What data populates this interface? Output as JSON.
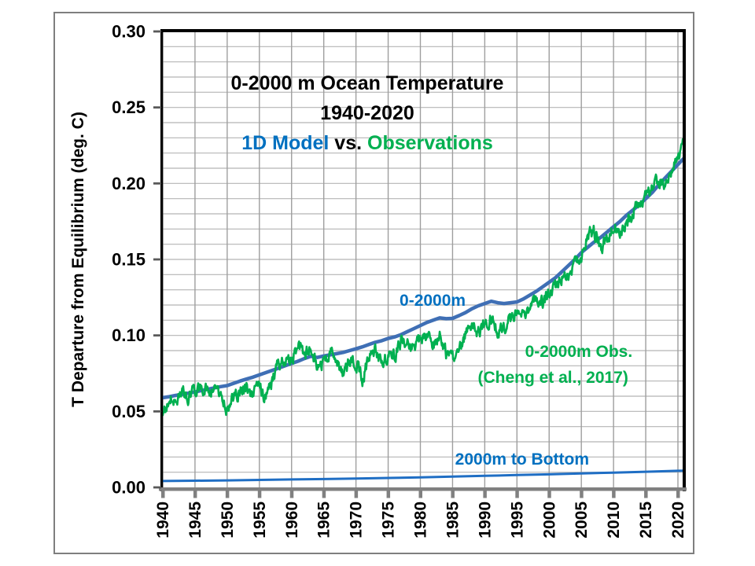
{
  "page": {
    "background": "#ffffff",
    "frame_color": "#7f7f7f"
  },
  "chart_data": {
    "type": "line",
    "title_line1": "0-2000 m Ocean Temperature",
    "title_line2": "1940-2020",
    "title_line3_parts": [
      {
        "text": "1D Model",
        "color": "#0070C0"
      },
      {
        "text": " vs. ",
        "color": "#000000"
      },
      {
        "text": "Observations",
        "color": "#00B050"
      }
    ],
    "ylabel": "T Departure from Equilibrium (deg. C)",
    "xlabel": "",
    "xlim": [
      1940,
      2020.8
    ],
    "ylim": [
      0.0,
      0.3
    ],
    "x_tick_step": 5,
    "y_major_step": 0.05,
    "y_minor_step": 0.01,
    "grid": "on",
    "legend_position": "inline-annotations",
    "x_tick_labels": [
      "1940",
      "1945",
      "1950",
      "1955",
      "1960",
      "1965",
      "1970",
      "1975",
      "1980",
      "1985",
      "1990",
      "1995",
      "2000",
      "2005",
      "2010",
      "2015",
      "2020"
    ],
    "y_tick_labels": [
      "0.00",
      "0.05",
      "0.10",
      "0.15",
      "0.20",
      "0.25",
      "0.30"
    ],
    "colors": {
      "model_line": "#3F6FB5",
      "model_text": "#0070C0",
      "obs_line": "#00B050",
      "bottom_line": "#1F6EC4",
      "x_axis": "#808080",
      "grid_h": "#B4B4B4",
      "grid_v": "#9E9E9E",
      "border": "#000000",
      "tick": "#595959"
    },
    "series": [
      {
        "name": "0-2000m (1D Model)",
        "color": "#3F6FB5",
        "width": 4.5,
        "points": [
          [
            1940,
            0.059
          ],
          [
            1941,
            0.0597
          ],
          [
            1942,
            0.0605
          ],
          [
            1943,
            0.0612
          ],
          [
            1944,
            0.062
          ],
          [
            1945,
            0.0628
          ],
          [
            1946,
            0.0637
          ],
          [
            1947,
            0.0646
          ],
          [
            1948,
            0.0655
          ],
          [
            1949,
            0.0663
          ],
          [
            1950,
            0.067
          ],
          [
            1951,
            0.0685
          ],
          [
            1952,
            0.07
          ],
          [
            1953,
            0.0713
          ],
          [
            1954,
            0.0725
          ],
          [
            1955,
            0.074
          ],
          [
            1956,
            0.0755
          ],
          [
            1957,
            0.077
          ],
          [
            1958,
            0.0785
          ],
          [
            1959,
            0.08
          ],
          [
            1960,
            0.0815
          ],
          [
            1961,
            0.083
          ],
          [
            1962,
            0.0848
          ],
          [
            1963,
            0.0862
          ],
          [
            1964,
            0.0855
          ],
          [
            1965,
            0.0865
          ],
          [
            1966,
            0.0872
          ],
          [
            1967,
            0.088
          ],
          [
            1968,
            0.0888
          ],
          [
            1969,
            0.09
          ],
          [
            1970,
            0.0912
          ],
          [
            1971,
            0.0925
          ],
          [
            1972,
            0.094
          ],
          [
            1973,
            0.0955
          ],
          [
            1974,
            0.0965
          ],
          [
            1975,
            0.098
          ],
          [
            1976,
            0.099
          ],
          [
            1977,
            0.1005
          ],
          [
            1978,
            0.1025
          ],
          [
            1979,
            0.1045
          ],
          [
            1980,
            0.1065
          ],
          [
            1981,
            0.1085
          ],
          [
            1982,
            0.11
          ],
          [
            1983,
            0.1115
          ],
          [
            1984,
            0.111
          ],
          [
            1985,
            0.1112
          ],
          [
            1986,
            0.113
          ],
          [
            1987,
            0.115
          ],
          [
            1988,
            0.1175
          ],
          [
            1989,
            0.1195
          ],
          [
            1990,
            0.121
          ],
          [
            1991,
            0.1225
          ],
          [
            1992,
            0.1215
          ],
          [
            1993,
            0.121
          ],
          [
            1994,
            0.1215
          ],
          [
            1995,
            0.122
          ],
          [
            1996,
            0.124
          ],
          [
            1997,
            0.1265
          ],
          [
            1998,
            0.129
          ],
          [
            1999,
            0.132
          ],
          [
            2000,
            0.135
          ],
          [
            2001,
            0.138
          ],
          [
            2002,
            0.142
          ],
          [
            2003,
            0.146
          ],
          [
            2004,
            0.15
          ],
          [
            2005,
            0.1545
          ],
          [
            2006,
            0.158
          ],
          [
            2007,
            0.1615
          ],
          [
            2008,
            0.1645
          ],
          [
            2009,
            0.168
          ],
          [
            2010,
            0.1715
          ],
          [
            2011,
            0.175
          ],
          [
            2012,
            0.179
          ],
          [
            2013,
            0.1825
          ],
          [
            2014,
            0.186
          ],
          [
            2015,
            0.19
          ],
          [
            2016,
            0.194
          ],
          [
            2017,
            0.199
          ],
          [
            2018,
            0.2035
          ],
          [
            2019,
            0.208
          ],
          [
            2020,
            0.2125
          ],
          [
            2020.8,
            0.216
          ]
        ]
      },
      {
        "name": "0-2000m Obs. (Cheng et al., 2017)",
        "color": "#00B050",
        "width": 2.6,
        "noise": {
          "amplitude": 0.0036,
          "persistence": 0.55,
          "per_year": 12,
          "seed": 20177
        },
        "points": [
          [
            1940,
            0.05
          ],
          [
            1941,
            0.057
          ],
          [
            1942,
            0.06
          ],
          [
            1943,
            0.062
          ],
          [
            1944,
            0.06
          ],
          [
            1945,
            0.064
          ],
          [
            1946,
            0.066
          ],
          [
            1947,
            0.064
          ],
          [
            1948,
            0.063
          ],
          [
            1949,
            0.06
          ],
          [
            1950,
            0.05
          ],
          [
            1951,
            0.059
          ],
          [
            1952,
            0.063
          ],
          [
            1953,
            0.064
          ],
          [
            1954,
            0.06
          ],
          [
            1955,
            0.067
          ],
          [
            1956,
            0.058
          ],
          [
            1957,
            0.069
          ],
          [
            1958,
            0.083
          ],
          [
            1959,
            0.081
          ],
          [
            1960,
            0.084
          ],
          [
            1961,
            0.094
          ],
          [
            1962,
            0.088
          ],
          [
            1963,
            0.091
          ],
          [
            1964,
            0.079
          ],
          [
            1965,
            0.083
          ],
          [
            1966,
            0.089
          ],
          [
            1967,
            0.085
          ],
          [
            1968,
            0.072
          ],
          [
            1969,
            0.083
          ],
          [
            1970,
            0.083
          ],
          [
            1971,
            0.07
          ],
          [
            1972,
            0.086
          ],
          [
            1973,
            0.091
          ],
          [
            1974,
            0.079
          ],
          [
            1975,
            0.088
          ],
          [
            1976,
            0.087
          ],
          [
            1977,
            0.095
          ],
          [
            1978,
            0.094
          ],
          [
            1979,
            0.091
          ],
          [
            1980,
            0.098
          ],
          [
            1981,
            0.099
          ],
          [
            1982,
            0.094
          ],
          [
            1983,
            0.099
          ],
          [
            1984,
            0.087
          ],
          [
            1985,
            0.085
          ],
          [
            1986,
            0.089
          ],
          [
            1987,
            0.1
          ],
          [
            1988,
            0.107
          ],
          [
            1989,
            0.103
          ],
          [
            1990,
            0.108
          ],
          [
            1991,
            0.112
          ],
          [
            1992,
            0.102
          ],
          [
            1993,
            0.106
          ],
          [
            1994,
            0.11
          ],
          [
            1995,
            0.114
          ],
          [
            1996,
            0.111
          ],
          [
            1997,
            0.119
          ],
          [
            1998,
            0.125
          ],
          [
            1999,
            0.121
          ],
          [
            2000,
            0.127
          ],
          [
            2001,
            0.133
          ],
          [
            2002,
            0.139
          ],
          [
            2003,
            0.141
          ],
          [
            2004,
            0.146
          ],
          [
            2005,
            0.152
          ],
          [
            2006,
            0.166
          ],
          [
            2007,
            0.168
          ],
          [
            2008,
            0.157
          ],
          [
            2009,
            0.163
          ],
          [
            2010,
            0.172
          ],
          [
            2011,
            0.167
          ],
          [
            2012,
            0.173
          ],
          [
            2013,
            0.181
          ],
          [
            2014,
            0.187
          ],
          [
            2015,
            0.192
          ],
          [
            2016,
            0.199
          ],
          [
            2017,
            0.202
          ],
          [
            2018,
            0.2
          ],
          [
            2019,
            0.209
          ],
          [
            2020,
            0.216
          ],
          [
            2020.4,
            0.218
          ],
          [
            2020.8,
            0.227
          ]
        ]
      },
      {
        "name": "2000m to Bottom",
        "color": "#1F6EC4",
        "width": 3,
        "points": [
          [
            1940,
            0.0042
          ],
          [
            1945,
            0.0044
          ],
          [
            1950,
            0.0046
          ],
          [
            1955,
            0.0049
          ],
          [
            1960,
            0.0052
          ],
          [
            1965,
            0.0055
          ],
          [
            1970,
            0.0058
          ],
          [
            1975,
            0.0062
          ],
          [
            1980,
            0.0066
          ],
          [
            1985,
            0.0071
          ],
          [
            1990,
            0.0076
          ],
          [
            1995,
            0.0081
          ],
          [
            2000,
            0.0086
          ],
          [
            2005,
            0.0092
          ],
          [
            2010,
            0.0097
          ],
          [
            2015,
            0.0103
          ],
          [
            2020,
            0.0109
          ],
          [
            2020.8,
            0.011
          ]
        ]
      }
    ],
    "annotations": [
      {
        "text": "0-2000m",
        "color": "#0070C0",
        "x": 1981.9,
        "y": 0.1226
      },
      {
        "text": "0-2000m Obs.",
        "color": "#00B050",
        "x": 2004.6,
        "y": 0.089
      },
      {
        "text": "(Cheng et al., 2017)",
        "color": "#00B050",
        "x": 2000.6,
        "y": 0.0719
      },
      {
        "text": "2000m to Bottom",
        "color": "#0070C0",
        "x": 1995.8,
        "y": 0.0181
      }
    ]
  }
}
